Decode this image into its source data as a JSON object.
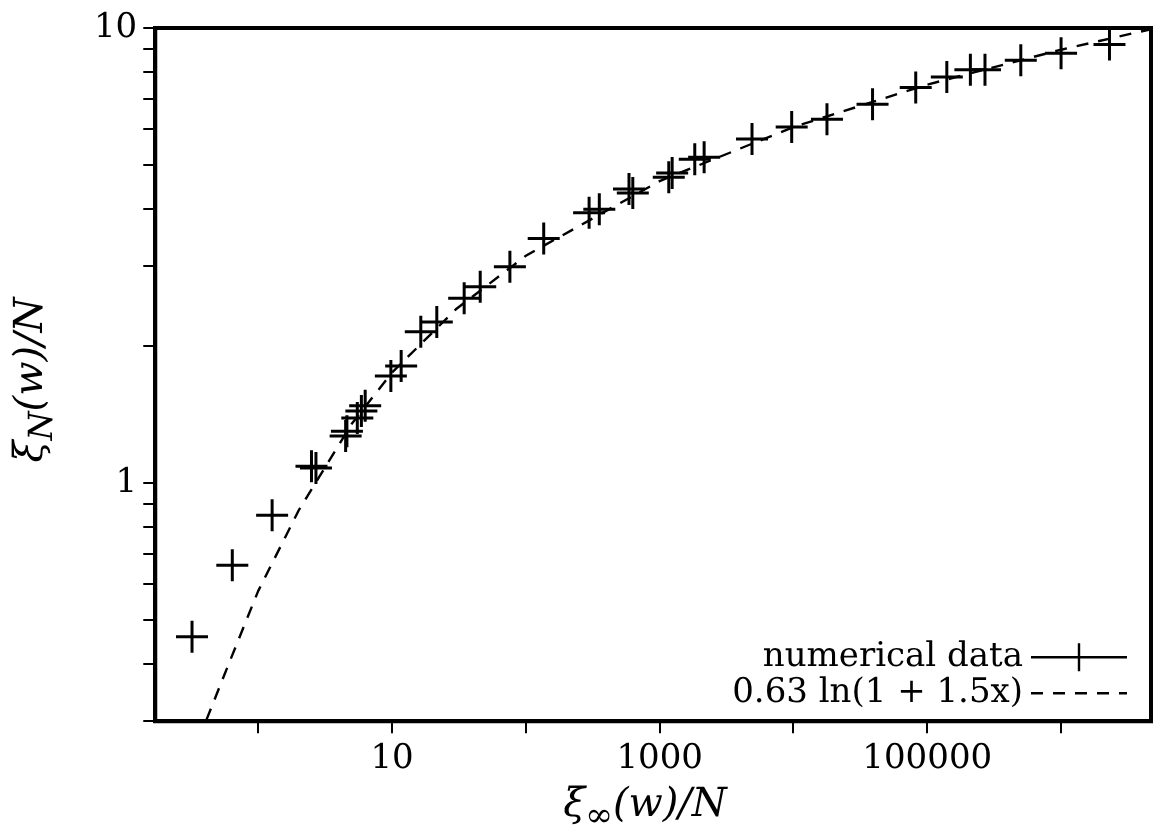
{
  "chart_data": {
    "type": "scatter",
    "xlabel": "ξ$_{∞}$(w)/N",
    "ylabel": "ξ$_{N}$(w)/N",
    "log": "xy",
    "grid": false,
    "legend": "bottom right",
    "marker": "cross",
    "xlim": [
      0.17,
      4700000
    ],
    "ylim": [
      0.3,
      10
    ],
    "xticks": [
      {
        "value": 1,
        "label": null
      },
      10,
      {
        "value": 100,
        "label": null
      },
      1000,
      {
        "value": 10000,
        "label": null
      },
      100000,
      {
        "value": 1000000,
        "label": null
      }
    ],
    "yticks": [
      {
        "value": 0.3,
        "label": null
      },
      {
        "value": 0.4,
        "label": null
      },
      {
        "value": 0.5,
        "label": null
      },
      {
        "value": 0.6,
        "label": null
      },
      {
        "value": 0.7,
        "label": null
      },
      {
        "value": 0.8,
        "label": null
      },
      {
        "value": 0.9,
        "label": null
      },
      1,
      {
        "value": 2,
        "label": null
      },
      {
        "value": 3,
        "label": null
      },
      {
        "value": 4,
        "label": null
      },
      {
        "value": 5,
        "label": null
      },
      {
        "value": 6,
        "label": null
      },
      {
        "value": 7,
        "label": null
      },
      {
        "value": 8,
        "label": null
      },
      {
        "value": 9,
        "label": null
      },
      10
    ],
    "series": [
      {
        "name": "numerical data",
        "color": "#000000",
        "x": [
          0.32,
          0.64,
          1.27,
          2.5,
          2.7,
          4.5,
          4.6,
          5.5,
          5.9,
          6.3,
          9.8,
          11.7,
          16.4,
          21.6,
          34.6,
          45.6,
          76,
          136,
          297,
          354,
          590,
          630,
          1170,
          1240,
          1830,
          2150,
          4900,
          9700,
          17800,
          39000,
          82000,
          140000,
          210000,
          270000,
          500000,
          1000000,
          2300000
        ],
        "values": [
          0.46,
          0.66,
          0.85,
          1.09,
          1.08,
          1.27,
          1.3,
          1.39,
          1.44,
          1.48,
          1.72,
          1.81,
          2.15,
          2.26,
          2.55,
          2.7,
          2.99,
          3.45,
          3.93,
          4.0,
          4.43,
          4.34,
          4.7,
          4.8,
          5.15,
          5.2,
          5.7,
          6.06,
          6.3,
          6.8,
          7.4,
          7.8,
          8.1,
          8.1,
          8.5,
          8.8,
          9.2
        ]
      },
      {
        "name": "0.63 ln(1 + 1.5x)",
        "type": "line",
        "color": "#000000",
        "line_style": "dashed",
        "marker": "none",
        "x": [
          0.41,
          0.6,
          1,
          2,
          5,
          10,
          30,
          100,
          1000,
          10000,
          100000,
          1000000,
          4700000
        ],
        "values": [
          0.302,
          0.4,
          0.58,
          0.87,
          1.35,
          1.75,
          2.41,
          3.16,
          4.61,
          6.06,
          7.51,
          8.96,
          9.94
        ]
      }
    ]
  }
}
